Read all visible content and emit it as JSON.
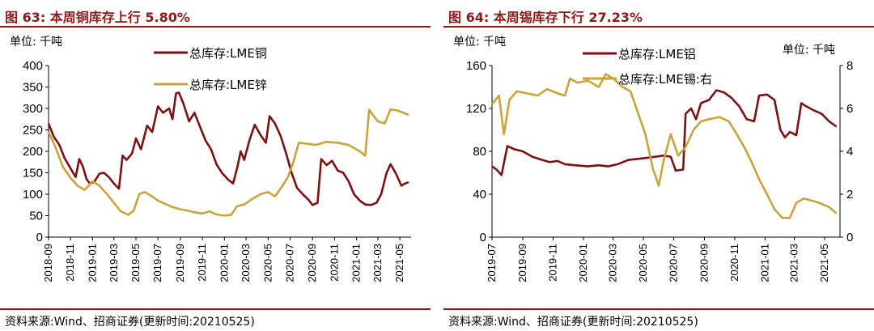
{
  "left_panel": {
    "title": "图 63:  本周铜库存上行 5.80%",
    "source": "资料来源:Wind、招商证券(更新时间:20210525)"
  },
  "right_panel": {
    "title": "图 64:  本周锡库存下行 27.23%",
    "source": "资料来源:Wind、招商证券(更新时间:20210525)"
  },
  "colors": {
    "primary": "#7b1113",
    "secondary": "#c9a43d",
    "accent": "#8b1a1a"
  },
  "chart_data": [
    {
      "type": "line",
      "unit_label": "单位:  千吨",
      "ylim": [
        0,
        400
      ],
      "yticks": [
        0,
        50,
        100,
        150,
        200,
        250,
        300,
        350,
        400
      ],
      "xlim": [
        "2018-09",
        "2021-06"
      ],
      "xticks": [
        "2018-09",
        "2018-11",
        "2019-01",
        "2019-03",
        "2019-05",
        "2019-07",
        "2019-09",
        "2019-11",
        "2020-01",
        "2020-03",
        "2020-05",
        "2020-07",
        "2020-09",
        "2020-11",
        "2021-01",
        "2021-03",
        "2021-05"
      ],
      "legend_position": "top",
      "series": [
        {
          "name": "总库存:LME铜",
          "color": "#7b1113",
          "points": [
            [
              "2018-09-01",
              265
            ],
            [
              "2018-09-15",
              235
            ],
            [
              "2018-10-01",
              215
            ],
            [
              "2018-10-15",
              185
            ],
            [
              "2018-11-01",
              160
            ],
            [
              "2018-11-15",
              140
            ],
            [
              "2018-11-25",
              182
            ],
            [
              "2018-12-05",
              165
            ],
            [
              "2018-12-15",
              135
            ],
            [
              "2018-12-25",
              125
            ],
            [
              "2019-01-05",
              128
            ],
            [
              "2019-01-20",
              148
            ],
            [
              "2019-02-01",
              150
            ],
            [
              "2019-02-15",
              140
            ],
            [
              "2019-03-01",
              125
            ],
            [
              "2019-03-15",
              113
            ],
            [
              "2019-03-25",
              190
            ],
            [
              "2019-04-05",
              180
            ],
            [
              "2019-04-20",
              195
            ],
            [
              "2019-05-01",
              230
            ],
            [
              "2019-05-15",
              205
            ],
            [
              "2019-06-01",
              260
            ],
            [
              "2019-06-15",
              245
            ],
            [
              "2019-07-01",
              305
            ],
            [
              "2019-07-15",
              290
            ],
            [
              "2019-08-01",
              300
            ],
            [
              "2019-08-10",
              275
            ],
            [
              "2019-08-20",
              335
            ],
            [
              "2019-08-28",
              337
            ],
            [
              "2019-09-10",
              310
            ],
            [
              "2019-09-25",
              270
            ],
            [
              "2019-10-10",
              290
            ],
            [
              "2019-10-25",
              258
            ],
            [
              "2019-11-10",
              225
            ],
            [
              "2019-11-25",
              205
            ],
            [
              "2019-12-10",
              170
            ],
            [
              "2019-12-25",
              150
            ],
            [
              "2020-01-10",
              135
            ],
            [
              "2020-01-25",
              125
            ],
            [
              "2020-02-05",
              160
            ],
            [
              "2020-02-15",
              200
            ],
            [
              "2020-02-25",
              180
            ],
            [
              "2020-03-10",
              225
            ],
            [
              "2020-03-25",
              262
            ],
            [
              "2020-04-10",
              238
            ],
            [
              "2020-04-25",
              220
            ],
            [
              "2020-05-05",
              282
            ],
            [
              "2020-05-20",
              265
            ],
            [
              "2020-06-05",
              235
            ],
            [
              "2020-06-20",
              195
            ],
            [
              "2020-07-05",
              150
            ],
            [
              "2020-07-20",
              115
            ],
            [
              "2020-08-05",
              100
            ],
            [
              "2020-08-20",
              88
            ],
            [
              "2020-09-01",
              75
            ],
            [
              "2020-09-15",
              80
            ],
            [
              "2020-09-25",
              182
            ],
            [
              "2020-10-10",
              168
            ],
            [
              "2020-10-25",
              178
            ],
            [
              "2020-11-10",
              155
            ],
            [
              "2020-11-25",
              150
            ],
            [
              "2020-12-10",
              130
            ],
            [
              "2020-12-25",
              100
            ],
            [
              "2021-01-10",
              85
            ],
            [
              "2021-01-25",
              76
            ],
            [
              "2021-02-10",
              75
            ],
            [
              "2021-02-25",
              80
            ],
            [
              "2021-03-10",
              100
            ],
            [
              "2021-03-25",
              150
            ],
            [
              "2021-04-05",
              170
            ],
            [
              "2021-04-20",
              148
            ],
            [
              "2021-05-05",
              120
            ],
            [
              "2021-05-15",
              125
            ],
            [
              "2021-05-25",
              128
            ]
          ]
        },
        {
          "name": "总库存:LME锌",
          "color": "#c9a43d",
          "points": [
            [
              "2018-09-01",
              245
            ],
            [
              "2018-09-20",
              210
            ],
            [
              "2018-10-10",
              165
            ],
            [
              "2018-11-01",
              138
            ],
            [
              "2018-11-20",
              120
            ],
            [
              "2018-12-10",
              110
            ],
            [
              "2019-01-01",
              130
            ],
            [
              "2019-01-20",
              120
            ],
            [
              "2019-02-10",
              100
            ],
            [
              "2019-03-01",
              80
            ],
            [
              "2019-03-20",
              60
            ],
            [
              "2019-04-10",
              52
            ],
            [
              "2019-04-25",
              62
            ],
            [
              "2019-05-10",
              100
            ],
            [
              "2019-05-25",
              105
            ],
            [
              "2019-06-15",
              95
            ],
            [
              "2019-07-01",
              85
            ],
            [
              "2019-07-20",
              78
            ],
            [
              "2019-08-10",
              70
            ],
            [
              "2019-09-01",
              65
            ],
            [
              "2019-09-20",
              62
            ],
            [
              "2019-10-10",
              58
            ],
            [
              "2019-11-01",
              55
            ],
            [
              "2019-11-20",
              60
            ],
            [
              "2019-12-10",
              53
            ],
            [
              "2020-01-01",
              50
            ],
            [
              "2020-01-20",
              52
            ],
            [
              "2020-02-05",
              72
            ],
            [
              "2020-02-25",
              76
            ],
            [
              "2020-03-20",
              90
            ],
            [
              "2020-04-10",
              100
            ],
            [
              "2020-05-01",
              105
            ],
            [
              "2020-05-20",
              95
            ],
            [
              "2020-06-10",
              120
            ],
            [
              "2020-06-25",
              140
            ],
            [
              "2020-07-10",
              175
            ],
            [
              "2020-07-25",
              220
            ],
            [
              "2020-08-15",
              218
            ],
            [
              "2020-09-10",
              215
            ],
            [
              "2020-10-10",
              222
            ],
            [
              "2020-11-10",
              220
            ],
            [
              "2020-12-10",
              215
            ],
            [
              "2021-01-10",
              200
            ],
            [
              "2021-01-25",
              190
            ],
            [
              "2021-02-05",
              297
            ],
            [
              "2021-02-15",
              285
            ],
            [
              "2021-03-01",
              270
            ],
            [
              "2021-03-20",
              265
            ],
            [
              "2021-04-05",
              298
            ],
            [
              "2021-04-25",
              295
            ],
            [
              "2021-05-10",
              290
            ],
            [
              "2021-05-25",
              285
            ]
          ]
        }
      ]
    },
    {
      "type": "line",
      "unit_label_left": "单位:  千吨",
      "unit_label_right": "单位:  千吨",
      "ylim": [
        0,
        160
      ],
      "yticks": [
        0,
        40,
        80,
        120,
        160
      ],
      "y2lim": [
        0,
        8
      ],
      "y2ticks": [
        0,
        2,
        4,
        6,
        8
      ],
      "xlim": [
        "2019-07",
        "2021-06"
      ],
      "xticks": [
        "2019-07",
        "2019-09",
        "2019-11",
        "2020-01",
        "2020-03",
        "2020-05",
        "2020-07",
        "2020-09",
        "2020-11",
        "2021-01",
        "2021-03",
        "2021-05"
      ],
      "legend_position": "top",
      "series": [
        {
          "name": "总库存:LME铝",
          "axis": "left",
          "color": "#7b1113",
          "points": [
            [
              "2019-07-01",
              66
            ],
            [
              "2019-07-10",
              63
            ],
            [
              "2019-07-20",
              58
            ],
            [
              "2019-08-01",
              85
            ],
            [
              "2019-08-15",
              82
            ],
            [
              "2019-09-01",
              80
            ],
            [
              "2019-09-20",
              75
            ],
            [
              "2019-10-10",
              72
            ],
            [
              "2019-10-25",
              70
            ],
            [
              "2019-11-10",
              71
            ],
            [
              "2019-11-25",
              68
            ],
            [
              "2019-12-15",
              67
            ],
            [
              "2020-01-10",
              66
            ],
            [
              "2020-02-01",
              67
            ],
            [
              "2020-02-20",
              66
            ],
            [
              "2020-03-10",
              68
            ],
            [
              "2020-04-01",
              72
            ],
            [
              "2020-04-20",
              73
            ],
            [
              "2020-05-10",
              74
            ],
            [
              "2020-05-25",
              75
            ],
            [
              "2020-06-10",
              76
            ],
            [
              "2020-06-25",
              75
            ],
            [
              "2020-07-05",
              62
            ],
            [
              "2020-07-20",
              63
            ],
            [
              "2020-07-25",
              115
            ],
            [
              "2020-08-05",
              120
            ],
            [
              "2020-08-15",
              110
            ],
            [
              "2020-08-25",
              125
            ],
            [
              "2020-09-10",
              128
            ],
            [
              "2020-09-25",
              137
            ],
            [
              "2020-10-10",
              135
            ],
            [
              "2020-10-25",
              130
            ],
            [
              "2020-11-10",
              122
            ],
            [
              "2020-11-25",
              110
            ],
            [
              "2020-12-10",
              108
            ],
            [
              "2020-12-20",
              132
            ],
            [
              "2021-01-05",
              133
            ],
            [
              "2021-01-20",
              128
            ],
            [
              "2021-02-01",
              100
            ],
            [
              "2021-02-10",
              93
            ],
            [
              "2021-02-20",
              98
            ],
            [
              "2021-03-05",
              95
            ],
            [
              "2021-03-15",
              125
            ],
            [
              "2021-03-25",
              122
            ],
            [
              "2021-04-10",
              118
            ],
            [
              "2021-04-25",
              115
            ],
            [
              "2021-05-10",
              108
            ],
            [
              "2021-05-25",
              103
            ]
          ]
        },
        {
          "name": "总库存:LME锡:右",
          "axis": "right",
          "color": "#c9a43d",
          "points": [
            [
              "2019-07-01",
              6.2
            ],
            [
              "2019-07-15",
              6.6
            ],
            [
              "2019-07-25",
              4.8
            ],
            [
              "2019-08-05",
              6.4
            ],
            [
              "2019-08-20",
              6.8
            ],
            [
              "2019-09-10",
              6.7
            ],
            [
              "2019-10-01",
              6.6
            ],
            [
              "2019-10-20",
              6.9
            ],
            [
              "2019-11-10",
              6.7
            ],
            [
              "2019-11-25",
              6.6
            ],
            [
              "2019-12-05",
              7.4
            ],
            [
              "2019-12-20",
              7.2
            ],
            [
              "2020-01-10",
              7.3
            ],
            [
              "2020-02-01",
              7.0
            ],
            [
              "2020-02-15",
              7.6
            ],
            [
              "2020-03-01",
              7.4
            ],
            [
              "2020-03-20",
              7.0
            ],
            [
              "2020-04-05",
              6.8
            ],
            [
              "2020-04-20",
              5.8
            ],
            [
              "2020-05-05",
              4.8
            ],
            [
              "2020-05-20",
              3.2
            ],
            [
              "2020-06-01",
              2.4
            ],
            [
              "2020-06-10",
              3.5
            ],
            [
              "2020-06-25",
              4.8
            ],
            [
              "2020-07-10",
              3.8
            ],
            [
              "2020-07-25",
              4.2
            ],
            [
              "2020-08-10",
              5.0
            ],
            [
              "2020-08-25",
              5.4
            ],
            [
              "2020-09-10",
              5.5
            ],
            [
              "2020-10-01",
              5.6
            ],
            [
              "2020-10-20",
              5.4
            ],
            [
              "2020-11-05",
              4.8
            ],
            [
              "2020-11-20",
              4.2
            ],
            [
              "2020-12-05",
              3.5
            ],
            [
              "2020-12-20",
              2.7
            ],
            [
              "2021-01-05",
              2.0
            ],
            [
              "2021-01-20",
              1.3
            ],
            [
              "2021-02-05",
              0.9
            ],
            [
              "2021-02-20",
              0.9
            ],
            [
              "2021-03-05",
              1.6
            ],
            [
              "2021-03-20",
              1.8
            ],
            [
              "2021-04-05",
              1.7
            ],
            [
              "2021-04-20",
              1.6
            ],
            [
              "2021-05-10",
              1.4
            ],
            [
              "2021-05-25",
              1.1
            ]
          ]
        }
      ]
    }
  ]
}
